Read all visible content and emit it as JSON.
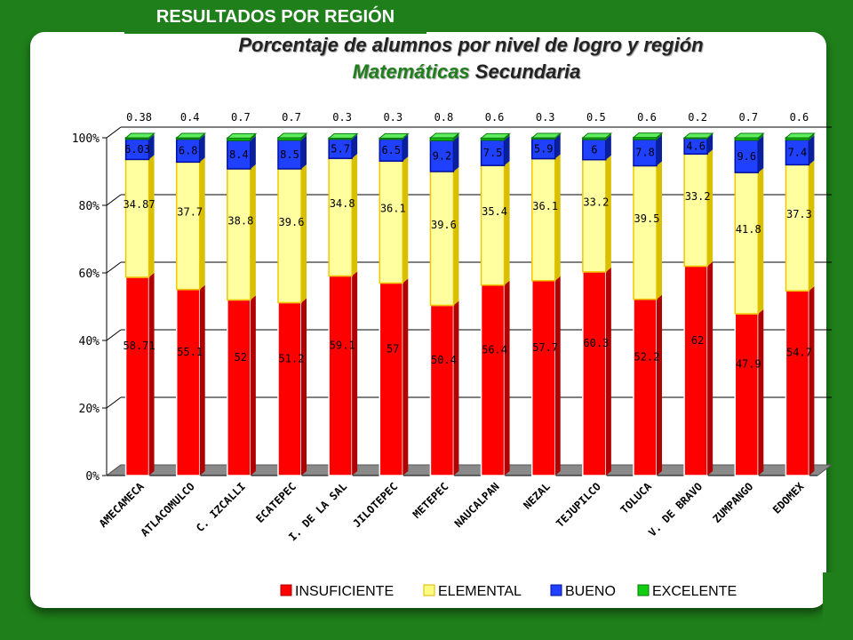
{
  "banner": "RESULTADOS POR REGIÓN",
  "title_line1": "Porcentaje de alumnos por nivel de logro y región",
  "title_line2_highlight": "Matemáticas",
  "title_line2_rest": " Secundaria",
  "colors": {
    "insuficiente": "#ff0000",
    "elemental": "#ffffa0",
    "bueno": "#2040ff",
    "excelente": "#11cc11",
    "background": "#1f7f1a"
  },
  "chart_data": {
    "type": "bar",
    "stacked": true,
    "categories": [
      "AMECAMECA",
      "ATLACOMULCO",
      "C. IZCALLI",
      "ECATEPEC",
      "I. DE LA SAL",
      "JILOTEPEC",
      "METEPEC",
      "NAUCALPAN",
      "NEZAL",
      "TEJUPILCO",
      "TOLUCA",
      "V. DE BRAVO",
      "ZUMPANGO",
      "EDOMEX"
    ],
    "series": [
      {
        "name": "INSUFICIENTE",
        "values": [
          58.71,
          55.1,
          52,
          51.2,
          59.1,
          57,
          50.4,
          56.4,
          57.7,
          60.3,
          52.2,
          62,
          47.9,
          54.7
        ],
        "labels": [
          "58.71",
          "55.1",
          "52",
          "51.2",
          "59.1",
          "57",
          "50.4",
          "56.4",
          "57.7",
          "60.3",
          "52.2",
          "62",
          "47.9",
          "54.7"
        ]
      },
      {
        "name": "ELEMENTAL",
        "values": [
          34.87,
          37.7,
          38.8,
          39.6,
          34.8,
          36.1,
          39.6,
          35.4,
          36.1,
          33.2,
          39.5,
          33.2,
          41.8,
          37.3
        ],
        "labels": [
          "34.87",
          "37.7",
          "38.8",
          "39.6",
          "34.8",
          "36.1",
          "39.6",
          "35.4",
          "36.1",
          "33.2",
          "39.5",
          "33.2",
          "41.8",
          "37.3"
        ]
      },
      {
        "name": "BUENO",
        "values": [
          6.03,
          6.8,
          8.4,
          8.5,
          5.7,
          6.5,
          9.2,
          7.5,
          5.9,
          6,
          7.8,
          4.6,
          9.6,
          7.4
        ],
        "labels": [
          "6.03",
          "6.8",
          "8.4",
          "8.5",
          "5.7",
          "6.5",
          "9.2",
          "7.5",
          "5.9",
          "6",
          "7.8",
          "4.6",
          "9.6",
          "7.4"
        ]
      },
      {
        "name": "EXCELENTE",
        "values": [
          0.38,
          0.4,
          0.7,
          0.7,
          0.3,
          0.3,
          0.8,
          0.6,
          0.3,
          0.5,
          0.6,
          0.2,
          0.7,
          0.6
        ],
        "labels": [
          "0.38",
          "0.4",
          "0.7",
          "0.7",
          "0.3",
          "0.3",
          "0.8",
          "0.6",
          "0.3",
          "0.5",
          "0.6",
          "0.2",
          "0.7",
          "0.6"
        ]
      }
    ],
    "yticks": [
      "0%",
      "20%",
      "40%",
      "60%",
      "80%",
      "100%"
    ],
    "ylim": [
      0,
      100
    ],
    "grid": true,
    "legend_position": "bottom"
  }
}
